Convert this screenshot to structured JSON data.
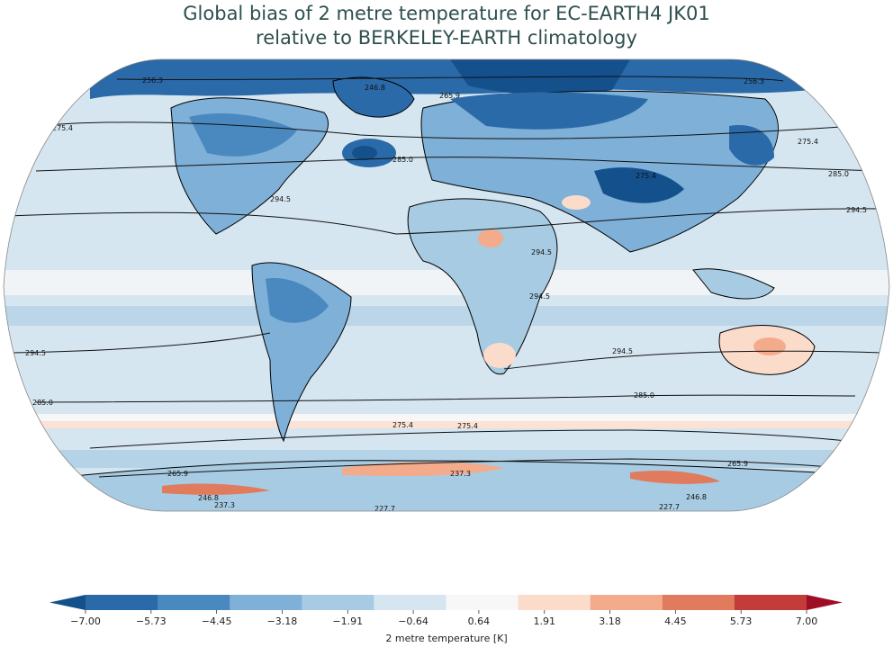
{
  "title": {
    "line1": "Global bias of 2 metre temperature for EC-EARTH4 JK01",
    "line2": "relative to BERKELEY-EARTH climatology"
  },
  "map": {
    "projection": "Robinson",
    "ocean_color": "#d6e6f1",
    "land_outline_color": "#000000",
    "contours": [
      {
        "value": "256.3"
      },
      {
        "value": "265.9"
      },
      {
        "value": "246.8"
      },
      {
        "value": "275.4"
      },
      {
        "value": "285.0"
      },
      {
        "value": "294.5"
      },
      {
        "value": "237.3"
      },
      {
        "value": "227.7"
      }
    ],
    "contour_labels": [
      "256.3",
      "246.8",
      "265.9",
      "256.3",
      "275.4",
      "275.4",
      "285.0",
      "275.4",
      "285.0",
      "294.5",
      "294.5",
      "294.5",
      "294.5",
      "294.5",
      "294.5",
      "285.0",
      "285.0",
      "275.4",
      "275.4",
      "265.9",
      "265.9",
      "237.3",
      "237.3",
      "246.8",
      "246.8",
      "227.7",
      "227.7"
    ]
  },
  "colorbar": {
    "label": "2 metre temperature [K]",
    "ticks": [
      "−7.00",
      "−5.73",
      "−4.45",
      "−3.18",
      "−1.91",
      "−0.64",
      "0.64",
      "1.91",
      "3.18",
      "4.45",
      "5.73",
      "7.00"
    ],
    "colors": [
      "#14508b",
      "#2b6aa8",
      "#4a89c0",
      "#7eb0d8",
      "#a7cbe2",
      "#d6e6f1",
      "#f7f7f7",
      "#fbdccb",
      "#f4ab8c",
      "#e07b5e",
      "#c43c3a",
      "#9e0e25"
    ]
  }
}
